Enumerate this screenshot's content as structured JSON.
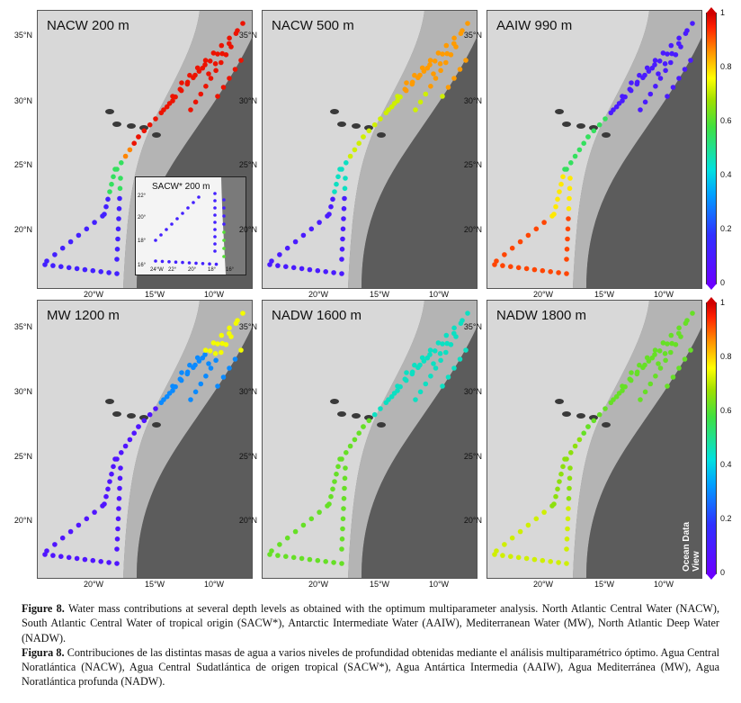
{
  "panels": [
    {
      "label": "NACW 200 m",
      "ramp": "nacw200"
    },
    {
      "label": "NACW 500 m",
      "ramp": "nacw500"
    },
    {
      "label": "AAIW 990 m",
      "ramp": "aaiw"
    },
    {
      "label": "MW 1200 m",
      "ramp": "mw"
    },
    {
      "label": "NADW 1600 m",
      "ramp": "nadw1600"
    },
    {
      "label": "NADW 1800 m",
      "ramp": "nadw1800"
    }
  ],
  "inset": {
    "label": "SACW* 200 m",
    "lat_ticks": [
      "22°",
      "20°",
      "18°",
      "16°"
    ],
    "lon_ticks": [
      "24°W",
      "22°",
      "20°",
      "18°",
      "16°"
    ]
  },
  "lat_ticks": [
    "35°N",
    "30°N",
    "25°N",
    "20°N"
  ],
  "lon_ticks": [
    "20°W",
    "15°W",
    "10°W"
  ],
  "colorbar": {
    "ticks": [
      "1",
      "0.8",
      "0.6",
      "0.4",
      "0.2",
      "0"
    ]
  },
  "watermark": "Ocean Data View",
  "caption": {
    "fig_en": "Figure 8.",
    "text_en": " Water mass contributions at several depth levels as obtained with the optimum multiparameter analysis. North Atlantic Central Water (NACW), South Atlantic Central Water of tropical origin (SACW*), Antarctic Intermediate Water (AAIW), Mediterranean Water (MW), North Atlantic Deep Water (NADW).",
    "fig_es": "Figura 8.",
    "text_es": " Contribuciones de las distintas masas de agua a varios niveles de profundidad obtenidas mediante el análisis multiparamétrico óptimo. Agua Central Noratlántica (NACW), Agua Central Sudatlántica de origen tropical (SACW*), Agua Antártica Intermedia (AAIW), Agua Mediterránea (MW), Agua Noratlántica profunda (NADW)."
  }
}
